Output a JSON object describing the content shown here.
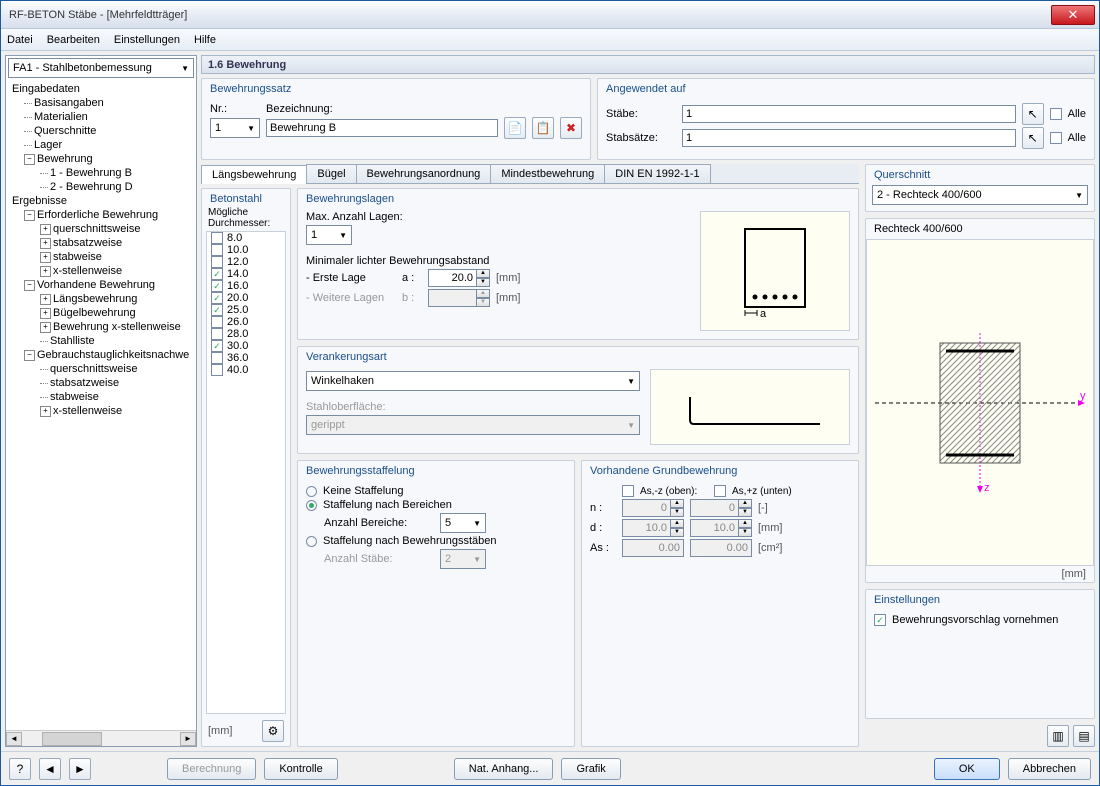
{
  "window": {
    "title": "RF-BETON Stäbe - [Mehrfeldtträger]"
  },
  "menu": {
    "file": "Datei",
    "edit": "Bearbeiten",
    "settings": "Einstellungen",
    "help": "Hilfe"
  },
  "nav_combo": "FA1 - Stahlbetonbemessung",
  "tree": {
    "eingabe": "Eingabedaten",
    "basis": "Basisangaben",
    "mat": "Materialien",
    "quer": "Querschnitte",
    "lager": "Lager",
    "beweh": "Bewehrung",
    "bew1": "1 - Bewehrung B",
    "bew2": "2 - Bewehrung D",
    "erg": "Ergebnisse",
    "erf": "Erforderliche Bewehrung",
    "qw": "querschnittsweise",
    "ssw": "stabsatzweise",
    "sw": "stabweise",
    "xsw": "x-stellenweise",
    "vor": "Vorhandene Bewehrung",
    "lang": "Längsbewehrung",
    "bugel": "Bügelbewehrung",
    "bewx": "Bewehrung x-stellenweise",
    "stahl": "Stahlliste",
    "gtn": "Gebrauchstauglichkeitsnachwe"
  },
  "header": "1.6 Bewehrung",
  "bewsatz": {
    "title": "Bewehrungssatz",
    "nr_label": "Nr.:",
    "nr_value": "1",
    "bez_label": "Bezeichnung:",
    "bez_value": "Bewehrung B"
  },
  "angewendet": {
    "title": "Angewendet auf",
    "stabe_label": "Stäbe:",
    "stabe_value": "1",
    "stabsatze_label": "Stabsätze:",
    "stabsatze_value": "1",
    "alle": "Alle"
  },
  "tabs": {
    "t1": "Längsbewehrung",
    "t2": "Bügel",
    "t3": "Bewehrungsanordnung",
    "t4": "Mindestbewehrung",
    "t5": "DIN EN 1992-1-1"
  },
  "betonstahl": {
    "title": "Betonstahl",
    "subtitle": "Mögliche Durchmesser:",
    "diameters": [
      {
        "v": "8.0",
        "c": false
      },
      {
        "v": "10.0",
        "c": false
      },
      {
        "v": "12.0",
        "c": false
      },
      {
        "v": "14.0",
        "c": true
      },
      {
        "v": "16.0",
        "c": true
      },
      {
        "v": "20.0",
        "c": true
      },
      {
        "v": "25.0",
        "c": true
      },
      {
        "v": "26.0",
        "c": false
      },
      {
        "v": "28.0",
        "c": false
      },
      {
        "v": "30.0",
        "c": true
      },
      {
        "v": "36.0",
        "c": false
      },
      {
        "v": "40.0",
        "c": false
      }
    ],
    "unit": "[mm]"
  },
  "bewlagen": {
    "title": "Bewehrungslagen",
    "max_label": "Max. Anzahl Lagen:",
    "max_value": "1",
    "min_label": "Minimaler lichter Bewehrungsabstand",
    "erste": "- Erste Lage",
    "a": "a :",
    "a_val": "20.0",
    "weitere": "- Weitere Lagen",
    "b": "b :",
    "mm": "[mm]"
  },
  "verank": {
    "title": "Verankerungsart",
    "value": "Winkelhaken",
    "surf_label": "Stahloberfläche:",
    "surf_value": "gerippt"
  },
  "staff": {
    "title": "Bewehrungsstaffelung",
    "r1": "Keine Staffelung",
    "r2": "Staffelung nach Bereichen",
    "anz_ber": "Anzahl Bereiche:",
    "anz_ber_v": "5",
    "r3": "Staffelung nach Bewehrungsstäben",
    "anz_stab": "Anzahl Stäbe:",
    "anz_stab_v": "2"
  },
  "grund": {
    "title": "Vorhandene Grundbewehrung",
    "as_oben": "As,-z (oben):",
    "as_unten": "As,+z (unten)",
    "n": "n :",
    "n1": "0",
    "n2": "0",
    "n_unit": "[-]",
    "d": "d :",
    "d1": "10.0",
    "d2": "10.0",
    "d_unit": "[mm]",
    "as": "As :",
    "as1": "0.00",
    "as2": "0.00",
    "as_unit": "[cm²]"
  },
  "querschnitt": {
    "title": "Querschnitt",
    "value": "2 - Rechteck 400/600",
    "caption": "Rechteck 400/600",
    "unit": "[mm]"
  },
  "einstell": {
    "title": "Einstellungen",
    "opt": "Bewehrungsvorschlag vornehmen"
  },
  "footer": {
    "berechnung": "Berechnung",
    "kontrolle": "Kontrolle",
    "nat": "Nat. Anhang...",
    "grafik": "Grafik",
    "ok": "OK",
    "abbrechen": "Abbrechen"
  }
}
